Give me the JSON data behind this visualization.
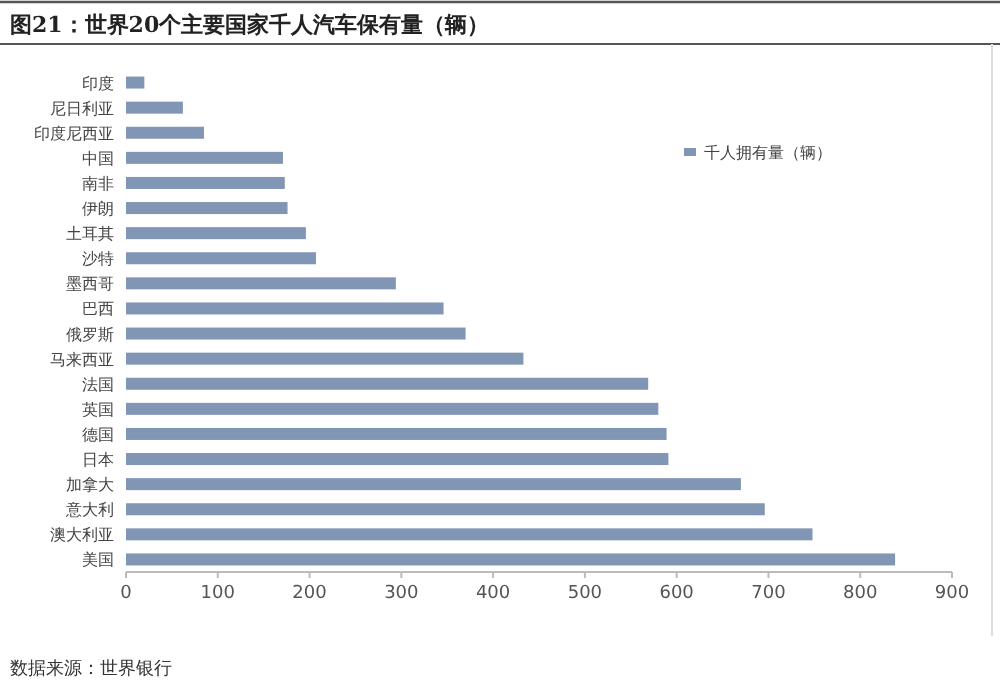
{
  "chart_data": {
    "type": "bar",
    "orientation": "horizontal",
    "title": "图21：世界20个主要国家千人汽车保有量（辆）",
    "annotations": [
      "数据来源：世界银行"
    ],
    "categories": [
      "印度",
      "尼日利亚",
      "印度尼西亚",
      "中国",
      "南非",
      "伊朗",
      "土耳其",
      "沙特",
      "墨西哥",
      "巴西",
      "俄罗斯",
      "马来西亚",
      "法国",
      "英国",
      "德国",
      "日本",
      "加拿大",
      "意大利",
      "澳大利亚",
      "美国"
    ],
    "series": [
      {
        "name": "千人拥有量（辆）",
        "color": "#8096b4",
        "values": [
          20,
          62,
          85,
          171,
          173,
          176,
          196,
          207,
          294,
          346,
          370,
          433,
          569,
          580,
          589,
          591,
          670,
          696,
          748,
          838
        ]
      }
    ],
    "xlim": [
      0,
      900
    ],
    "xticks": [
      0,
      100,
      200,
      300,
      400,
      500,
      600,
      700,
      800,
      900
    ],
    "grid": false,
    "legend": "top right"
  }
}
